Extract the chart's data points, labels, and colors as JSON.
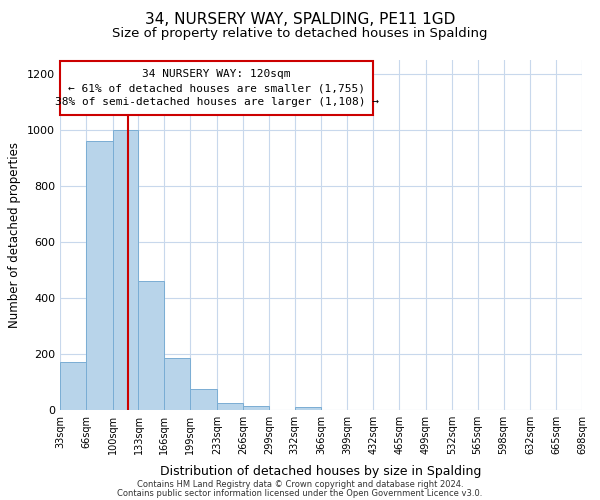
{
  "title_line1": "34, NURSERY WAY, SPALDING, PE11 1GD",
  "title_line2": "Size of property relative to detached houses in Spalding",
  "xlabel": "Distribution of detached houses by size in Spalding",
  "ylabel": "Number of detached properties",
  "bin_edges": [
    33,
    66,
    100,
    133,
    166,
    199,
    233,
    266,
    299,
    332,
    366,
    399,
    432,
    465,
    499,
    532,
    565,
    598,
    632,
    665,
    698
  ],
  "bar_heights": [
    170,
    960,
    1000,
    460,
    185,
    75,
    25,
    15,
    0,
    10,
    0,
    0,
    0,
    0,
    0,
    0,
    0,
    0,
    0,
    0
  ],
  "bar_color": "#b8d4ea",
  "bar_edge_color": "#7aadd4",
  "property_size": 120,
  "property_line_color": "#cc0000",
  "annotation_line1": "34 NURSERY WAY: 120sqm",
  "annotation_line2": "← 61% of detached houses are smaller (1,755)",
  "annotation_line3": "38% of semi-detached houses are larger (1,108) →",
  "annotation_box_color": "#ffffff",
  "annotation_box_edge_color": "#cc0000",
  "ylim": [
    0,
    1250
  ],
  "yticks": [
    0,
    200,
    400,
    600,
    800,
    1000,
    1200
  ],
  "footer_line1": "Contains HM Land Registry data © Crown copyright and database right 2024.",
  "footer_line2": "Contains public sector information licensed under the Open Government Licence v3.0.",
  "background_color": "#ffffff",
  "grid_color": "#c8d8ec",
  "title1_fontsize": 11,
  "title2_fontsize": 9.5,
  "xlabel_fontsize": 9,
  "ylabel_fontsize": 8.5,
  "tick_label_fontsize": 7,
  "annotation_fontsize": 8,
  "footer_fontsize": 6
}
